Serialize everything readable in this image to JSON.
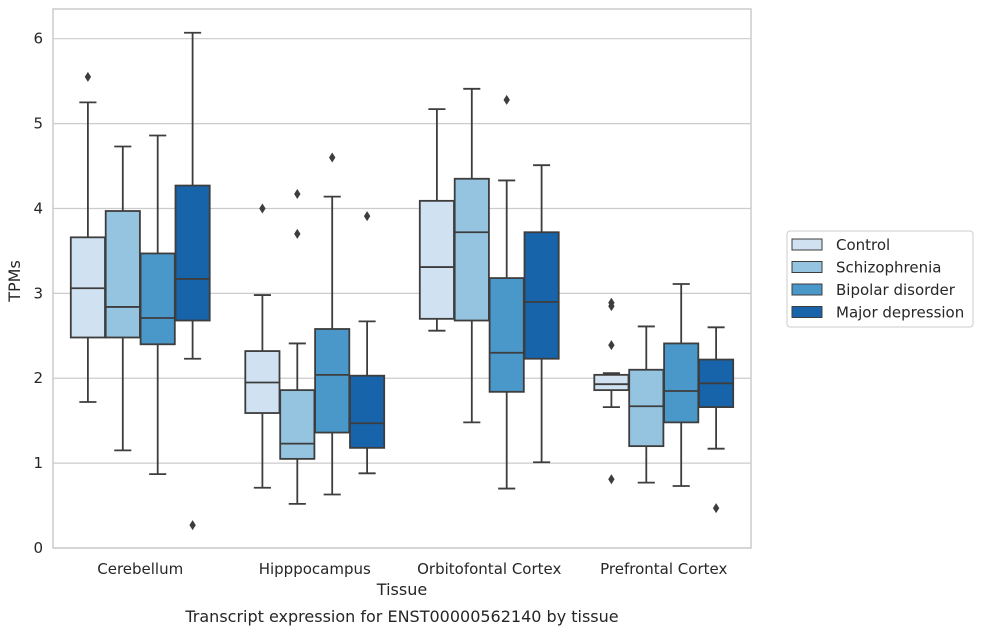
{
  "chart_data": {
    "type": "box",
    "title": "",
    "caption": "Transcript expression for ENST00000562140 by tissue",
    "xlabel": "Tissue",
    "ylabel": "TPMs",
    "ylim": [
      0,
      6.35
    ],
    "yticks": [
      "0",
      "1",
      "2",
      "3",
      "4",
      "5",
      "6"
    ],
    "grid": "horizontal",
    "legend_position": "right",
    "categories": [
      "Cerebellum",
      "Hipppocampus",
      "Orbitofontal Cortex",
      "Prefrontal Cortex"
    ],
    "series": [
      {
        "name": "Control",
        "color": "#d0e1f2",
        "boxes": [
          {
            "whislo": 1.72,
            "q1": 2.48,
            "med": 3.06,
            "q3": 3.66,
            "whishi": 5.25,
            "fliers": [
              5.55
            ]
          },
          {
            "whislo": 0.71,
            "q1": 1.59,
            "med": 1.95,
            "q3": 2.32,
            "whishi": 2.98,
            "fliers": [
              4.0
            ]
          },
          {
            "whislo": 2.56,
            "q1": 2.7,
            "med": 3.31,
            "q3": 4.09,
            "whishi": 5.17,
            "fliers": []
          },
          {
            "whislo": 1.66,
            "q1": 1.86,
            "med": 1.93,
            "q3": 2.04,
            "whishi": 2.06,
            "fliers": [
              2.85,
              2.89,
              2.39,
              0.81
            ]
          }
        ]
      },
      {
        "name": "Schizophrenia",
        "color": "#94c4df",
        "boxes": [
          {
            "whislo": 1.15,
            "q1": 2.48,
            "med": 2.84,
            "q3": 3.97,
            "whishi": 4.73,
            "fliers": []
          },
          {
            "whislo": 0.52,
            "q1": 1.05,
            "med": 1.23,
            "q3": 1.86,
            "whishi": 2.41,
            "fliers": [
              4.17,
              3.7
            ]
          },
          {
            "whislo": 1.48,
            "q1": 2.68,
            "med": 3.72,
            "q3": 4.35,
            "whishi": 5.41,
            "fliers": []
          },
          {
            "whislo": 0.77,
            "q1": 1.2,
            "med": 1.67,
            "q3": 2.1,
            "whishi": 2.61,
            "fliers": []
          }
        ]
      },
      {
        "name": "Bipolar disorder",
        "color": "#4a98c9",
        "boxes": [
          {
            "whislo": 0.87,
            "q1": 2.4,
            "med": 2.71,
            "q3": 3.47,
            "whishi": 4.86,
            "fliers": []
          },
          {
            "whislo": 0.63,
            "q1": 1.36,
            "med": 2.04,
            "q3": 2.58,
            "whishi": 4.14,
            "fliers": [
              4.6
            ]
          },
          {
            "whislo": 0.7,
            "q1": 1.84,
            "med": 2.3,
            "q3": 3.18,
            "whishi": 4.33,
            "fliers": [
              5.28
            ]
          },
          {
            "whislo": 0.73,
            "q1": 1.48,
            "med": 1.85,
            "q3": 2.41,
            "whishi": 3.11,
            "fliers": []
          }
        ]
      },
      {
        "name": "Major depression",
        "color": "#1764ab",
        "boxes": [
          {
            "whislo": 2.23,
            "q1": 2.68,
            "med": 3.17,
            "q3": 4.27,
            "whishi": 6.07,
            "fliers": [
              0.27
            ]
          },
          {
            "whislo": 0.88,
            "q1": 1.18,
            "med": 1.47,
            "q3": 2.03,
            "whishi": 2.67,
            "fliers": [
              3.91
            ]
          },
          {
            "whislo": 1.01,
            "q1": 2.23,
            "med": 2.9,
            "q3": 3.72,
            "whishi": 4.51,
            "fliers": []
          },
          {
            "whislo": 1.17,
            "q1": 1.66,
            "med": 1.94,
            "q3": 2.22,
            "whishi": 2.6,
            "fliers": [
              0.47
            ]
          }
        ]
      }
    ]
  }
}
